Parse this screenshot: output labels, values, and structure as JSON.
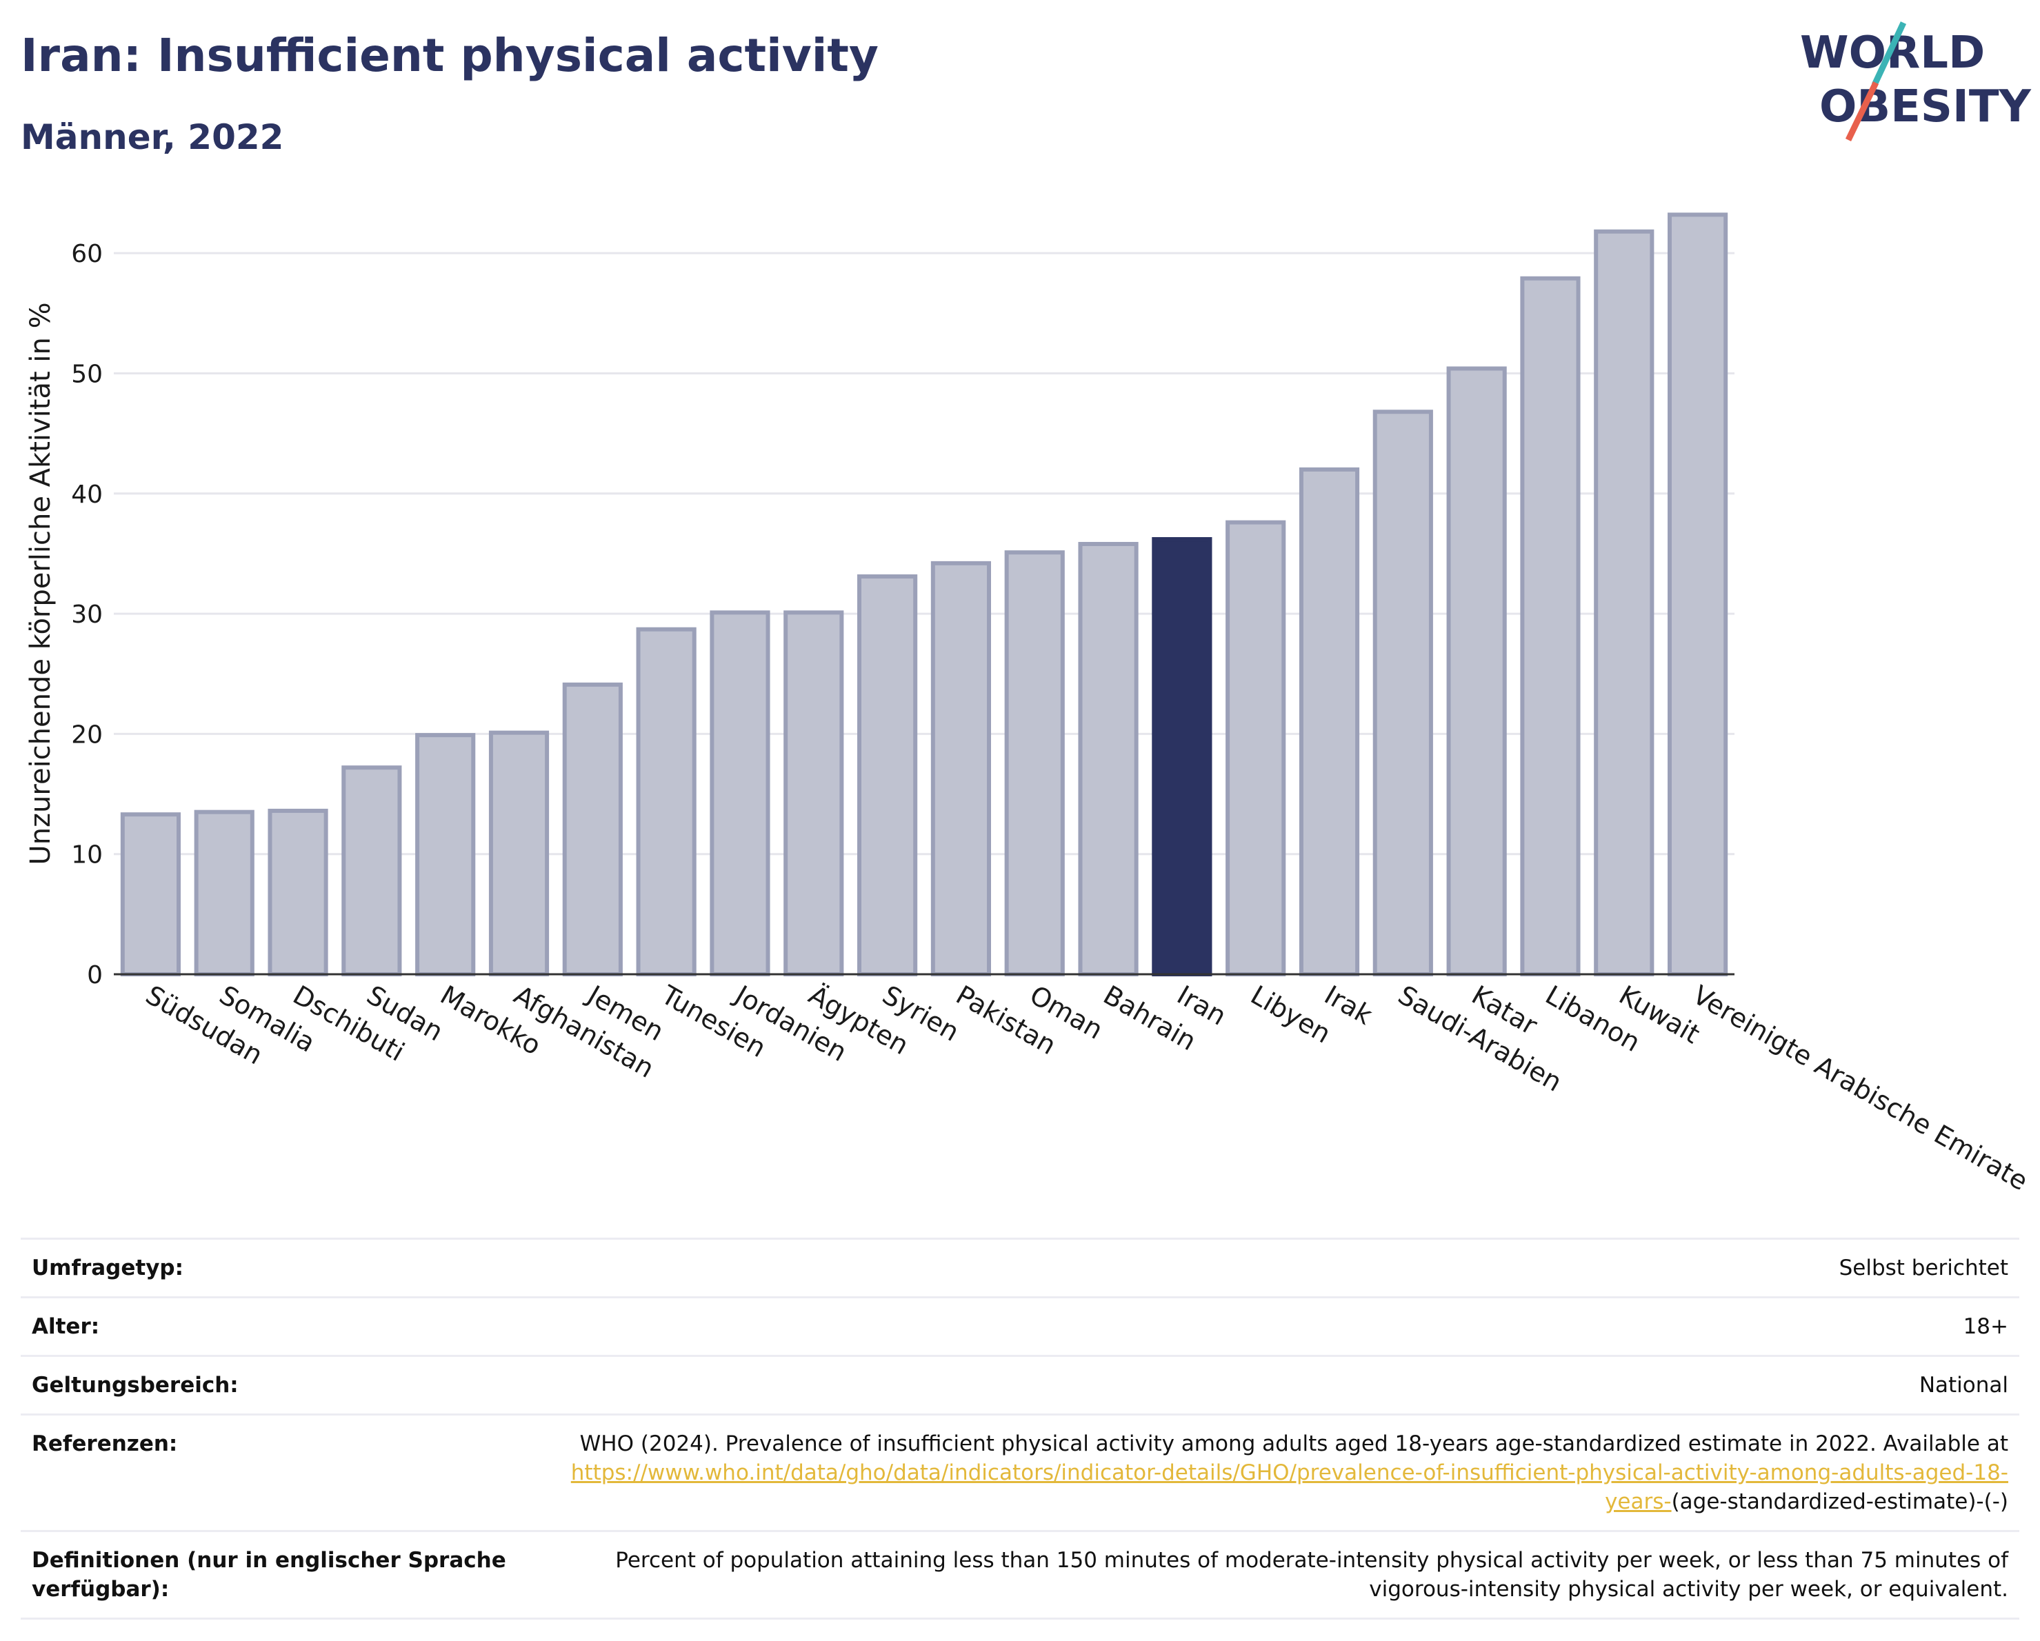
{
  "header": {
    "title": "Iran: Insufficient physical activity",
    "subtitle": "Männer, 2022"
  },
  "logo": {
    "line1": "WORLD",
    "line2": "OBESITY"
  },
  "colors": {
    "highlight": "#2b3361",
    "bar": "#bfc2d0",
    "bar_border": "#9ba0b8",
    "grid": "#e6e6ec",
    "link": "#e3b83a",
    "logo_red": "#e8604c",
    "logo_teal": "#3bb3b5"
  },
  "chart_data": {
    "type": "bar",
    "title": "",
    "xlabel": "",
    "ylabel": "Unzureichende körperliche Aktivität in %",
    "ylim": [
      0,
      65
    ],
    "yticks": [
      0,
      10,
      20,
      30,
      40,
      50,
      60
    ],
    "grid": true,
    "highlight": "Iran",
    "categories": [
      "Südsudan",
      "Somalia",
      "Dschibuti",
      "Sudan",
      "Marokko",
      "Afghanistan",
      "Jemen",
      "Tunesien",
      "Jordanien",
      "Ägypten",
      "Syrien",
      "Pakistan",
      "Oman",
      "Bahrain",
      "Iran",
      "Libyen",
      "Irak",
      "Saudi-Arabien",
      "Katar",
      "Libanon",
      "Kuwait",
      "Vereinigte Arabische Emirate"
    ],
    "values": [
      13.3,
      13.5,
      13.6,
      17.2,
      19.9,
      20.1,
      24.1,
      28.7,
      30.1,
      30.1,
      33.1,
      34.2,
      35.1,
      35.8,
      36.2,
      37.6,
      42.0,
      46.8,
      50.4,
      57.9,
      61.8,
      63.2
    ]
  },
  "meta": {
    "survey_label": "Umfragetyp:",
    "survey_value": "Selbst berichtet",
    "age_label": "Alter:",
    "age_value": "18+",
    "scope_label": "Geltungsbereich:",
    "scope_value": "National",
    "ref_label": "Referenzen:",
    "ref_text": "WHO (2024). Prevalence of insufficient physical activity among adults aged 18-years age-standardized estimate in 2022. Available at",
    "ref_link": "https://www.who.int/data/gho/data/indicators/indicator-details/GHO/prevalence-of-insufficient-physical-activity-among-adults-aged-18-years-",
    "ref_suffix": "(age-standardized-estimate)-(-)",
    "def_label": "Definitionen (nur in englischer Sprache verfügbar):",
    "def_value": "Percent of population attaining less than 150 minutes of moderate-intensity physical activity per week, or less than 75 minutes of vigorous-intensity physical activity per week, or equivalent."
  }
}
